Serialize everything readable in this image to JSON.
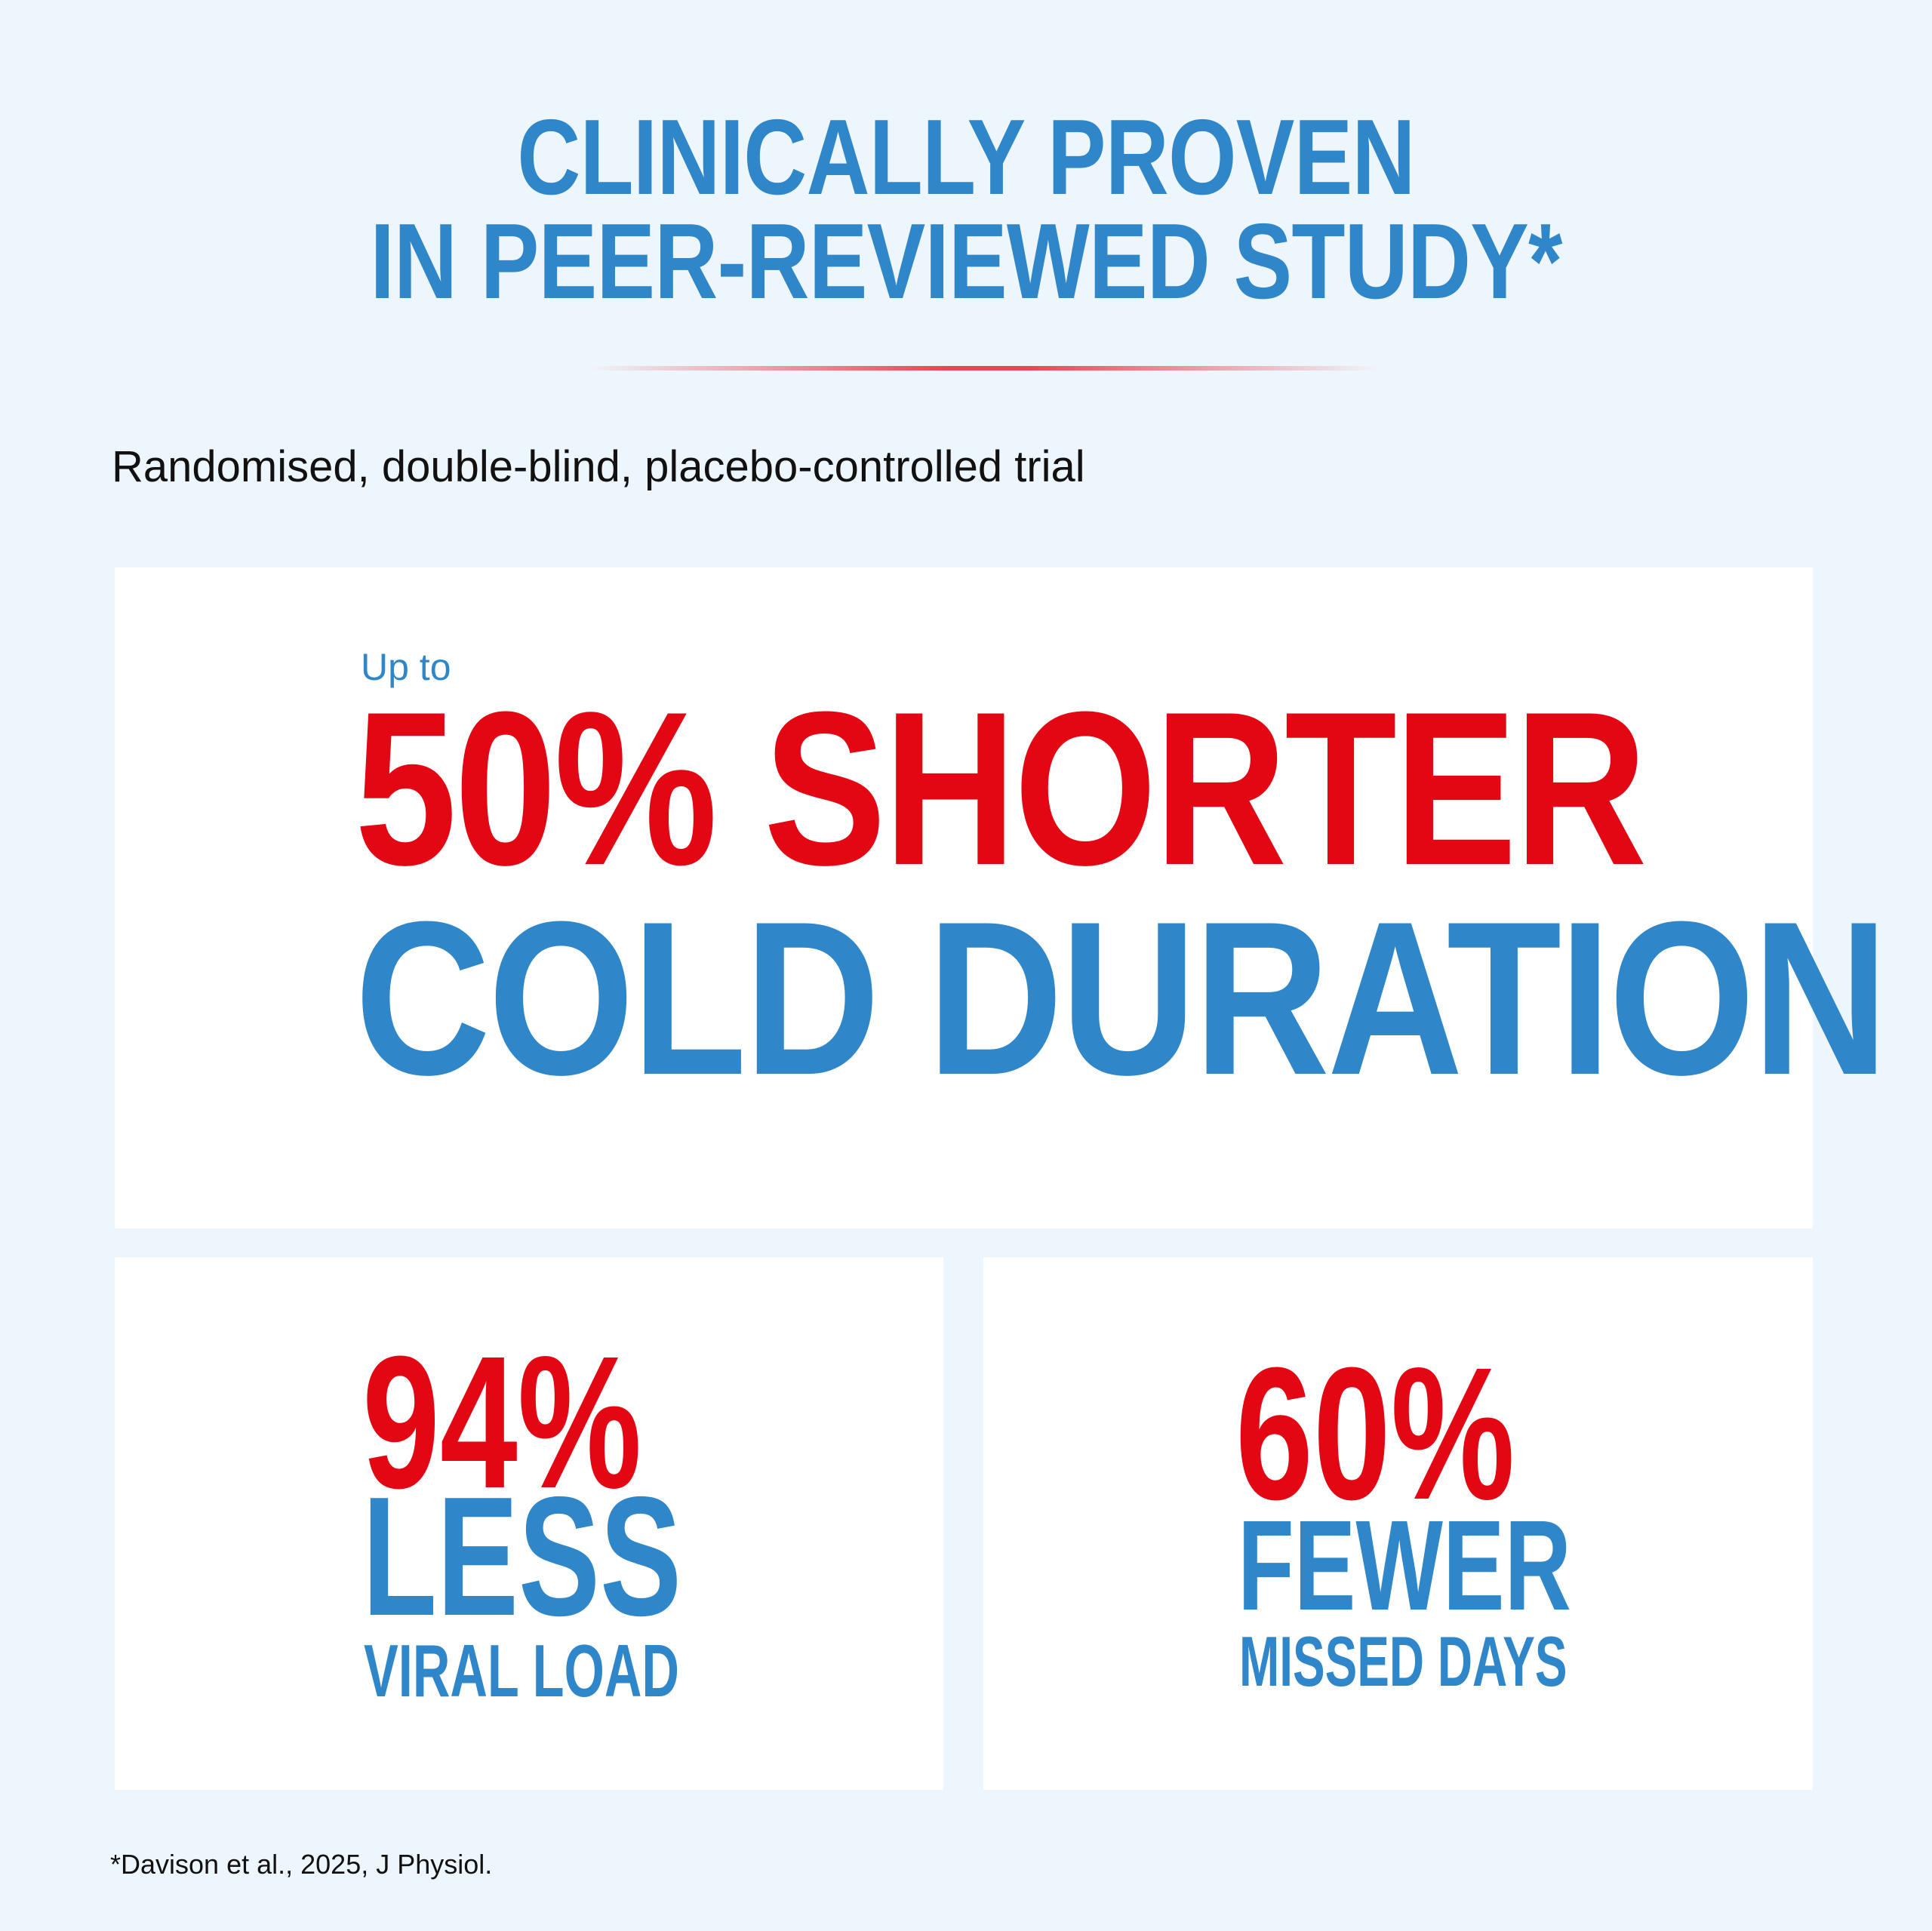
{
  "header": {
    "title_line1": "CLINICALLY PROVEN",
    "title_line2": "IN PEER-REVIEWED STUDY*"
  },
  "subtitle": "Randomised, double-blind, placebo-controlled trial",
  "main_stat": {
    "prefix": "Up to",
    "line1": "50% SHORTER",
    "line2": "COLD DURATION"
  },
  "stat_left": {
    "value": "94%",
    "word": "LESS",
    "label": "VIRAL LOAD"
  },
  "stat_right": {
    "value": "60%",
    "word": "FEWER",
    "label": "MISSED DAYS"
  },
  "footnote": "*Davison et al., 2025, J Physiol.",
  "colors": {
    "background": "#eef6fd",
    "blue": "#2f86c8",
    "red": "#e30613",
    "card": "#ffffff"
  }
}
